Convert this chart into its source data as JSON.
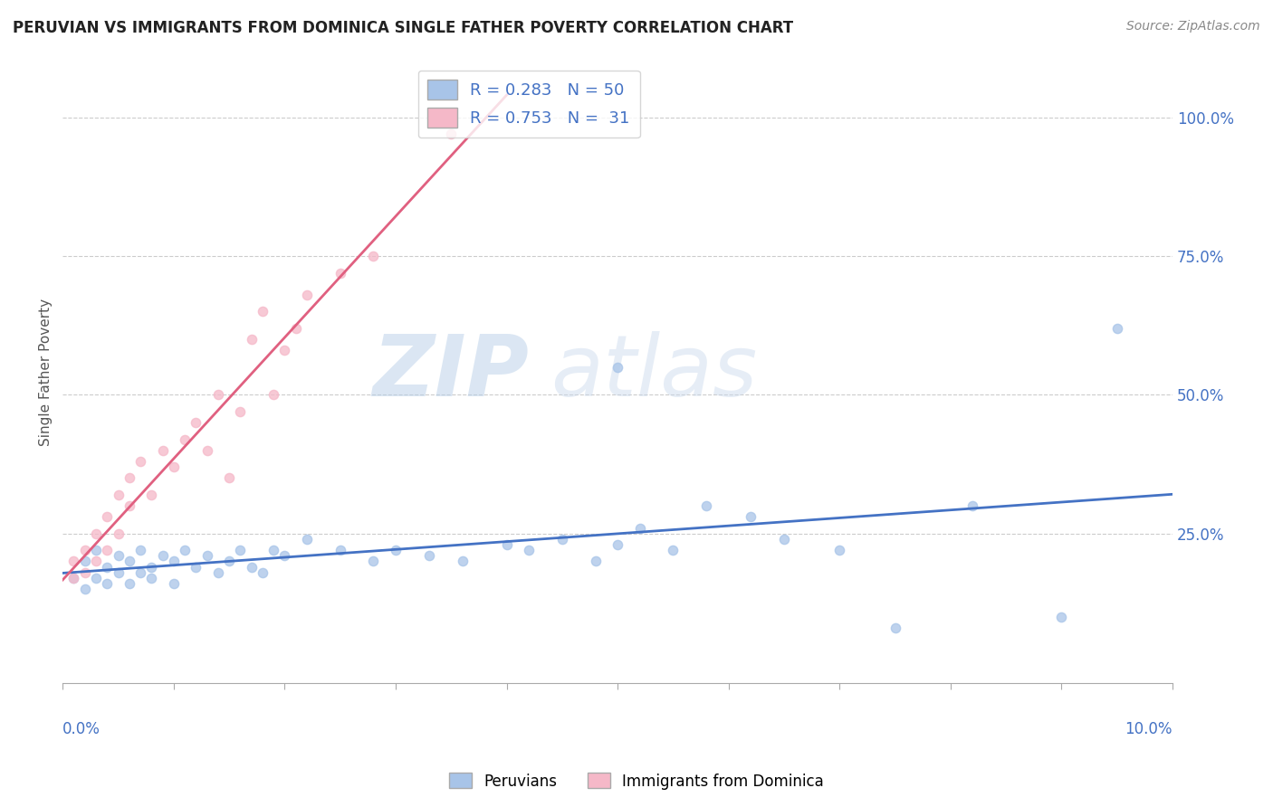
{
  "title": "PERUVIAN VS IMMIGRANTS FROM DOMINICA SINGLE FATHER POVERTY CORRELATION CHART",
  "source": "Source: ZipAtlas.com",
  "ylabel": "Single Father Poverty",
  "right_yticks": [
    "100.0%",
    "75.0%",
    "50.0%",
    "25.0%"
  ],
  "right_ytick_vals": [
    1.0,
    0.75,
    0.5,
    0.25
  ],
  "xlim": [
    0.0,
    0.1
  ],
  "ylim": [
    -0.02,
    1.1
  ],
  "peruvian_color": "#a8c4e8",
  "dominica_color": "#f5b8c8",
  "peruvian_line_color": "#4472c4",
  "dominica_line_color": "#e06080",
  "R_peruvian": 0.283,
  "N_peruvian": 50,
  "R_dominica": 0.753,
  "N_dominica": 31,
  "watermark_zip": "ZIP",
  "watermark_atlas": "atlas",
  "peruvian_x": [
    0.001,
    0.002,
    0.002,
    0.003,
    0.003,
    0.004,
    0.004,
    0.005,
    0.005,
    0.006,
    0.006,
    0.007,
    0.007,
    0.008,
    0.008,
    0.009,
    0.01,
    0.01,
    0.011,
    0.012,
    0.013,
    0.014,
    0.015,
    0.016,
    0.017,
    0.018,
    0.019,
    0.02,
    0.022,
    0.025,
    0.028,
    0.03,
    0.033,
    0.036,
    0.04,
    0.042,
    0.045,
    0.048,
    0.05,
    0.05,
    0.052,
    0.055,
    0.058,
    0.062,
    0.065,
    0.07,
    0.075,
    0.082,
    0.09,
    0.095
  ],
  "peruvian_y": [
    0.17,
    0.15,
    0.2,
    0.17,
    0.22,
    0.16,
    0.19,
    0.18,
    0.21,
    0.16,
    0.2,
    0.18,
    0.22,
    0.17,
    0.19,
    0.21,
    0.16,
    0.2,
    0.22,
    0.19,
    0.21,
    0.18,
    0.2,
    0.22,
    0.19,
    0.18,
    0.22,
    0.21,
    0.24,
    0.22,
    0.2,
    0.22,
    0.21,
    0.2,
    0.23,
    0.22,
    0.24,
    0.2,
    0.55,
    0.23,
    0.26,
    0.22,
    0.3,
    0.28,
    0.24,
    0.22,
    0.08,
    0.3,
    0.1,
    0.62
  ],
  "dominica_x": [
    0.001,
    0.001,
    0.002,
    0.002,
    0.003,
    0.003,
    0.004,
    0.004,
    0.005,
    0.005,
    0.006,
    0.006,
    0.007,
    0.008,
    0.009,
    0.01,
    0.011,
    0.012,
    0.013,
    0.014,
    0.015,
    0.016,
    0.017,
    0.018,
    0.019,
    0.02,
    0.021,
    0.022,
    0.025,
    0.028,
    0.035
  ],
  "dominica_y": [
    0.17,
    0.2,
    0.18,
    0.22,
    0.2,
    0.25,
    0.22,
    0.28,
    0.25,
    0.32,
    0.3,
    0.35,
    0.38,
    0.32,
    0.4,
    0.37,
    0.42,
    0.45,
    0.4,
    0.5,
    0.35,
    0.47,
    0.6,
    0.65,
    0.5,
    0.58,
    0.62,
    0.68,
    0.72,
    0.75,
    0.97
  ]
}
